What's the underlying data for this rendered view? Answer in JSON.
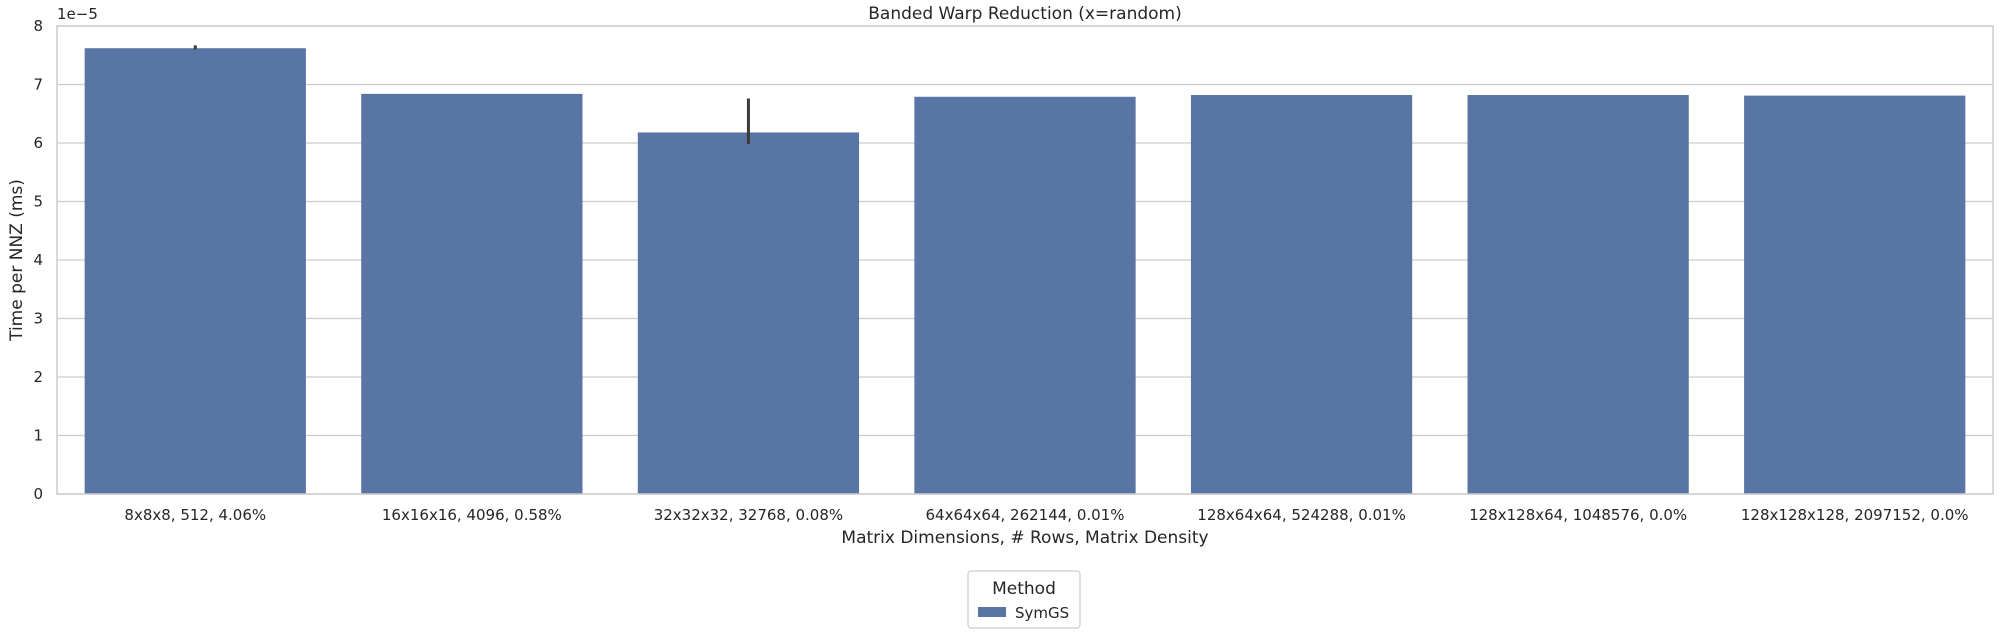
{
  "chart_data": {
    "type": "bar",
    "title": "Banded Warp Reduction (x=random)",
    "xlabel": "Matrix Dimensions, # Rows, Matrix Density",
    "ylabel": "Time per NNZ (ms)",
    "y_scale_label": "1e−5",
    "ylim": [
      0,
      8
    ],
    "yticks": [
      "0",
      "1",
      "2",
      "3",
      "4",
      "5",
      "6",
      "7",
      "8"
    ],
    "grid": "horizontal",
    "categories": [
      "8x8x8, 512, 4.06%",
      "16x16x16, 4096, 0.58%",
      "32x32x32, 32768, 0.08%",
      "64x64x64, 262144, 0.01%",
      "128x64x64, 524288, 0.01%",
      "128x128x64, 1048576, 0.0%",
      "128x128x128, 2097152, 0.0%"
    ],
    "series": [
      {
        "name": "SymGS",
        "color": "#5975a4",
        "values": [
          7.62,
          6.84,
          6.18,
          6.79,
          6.82,
          6.82,
          6.81
        ],
        "error_low": [
          7.6,
          null,
          5.98,
          null,
          null,
          null,
          null
        ],
        "error_high": [
          7.67,
          null,
          6.76,
          null,
          null,
          null,
          null
        ]
      }
    ],
    "legend": {
      "title": "Method",
      "placement": "bottom-center",
      "entries": [
        "SymGS"
      ]
    }
  }
}
